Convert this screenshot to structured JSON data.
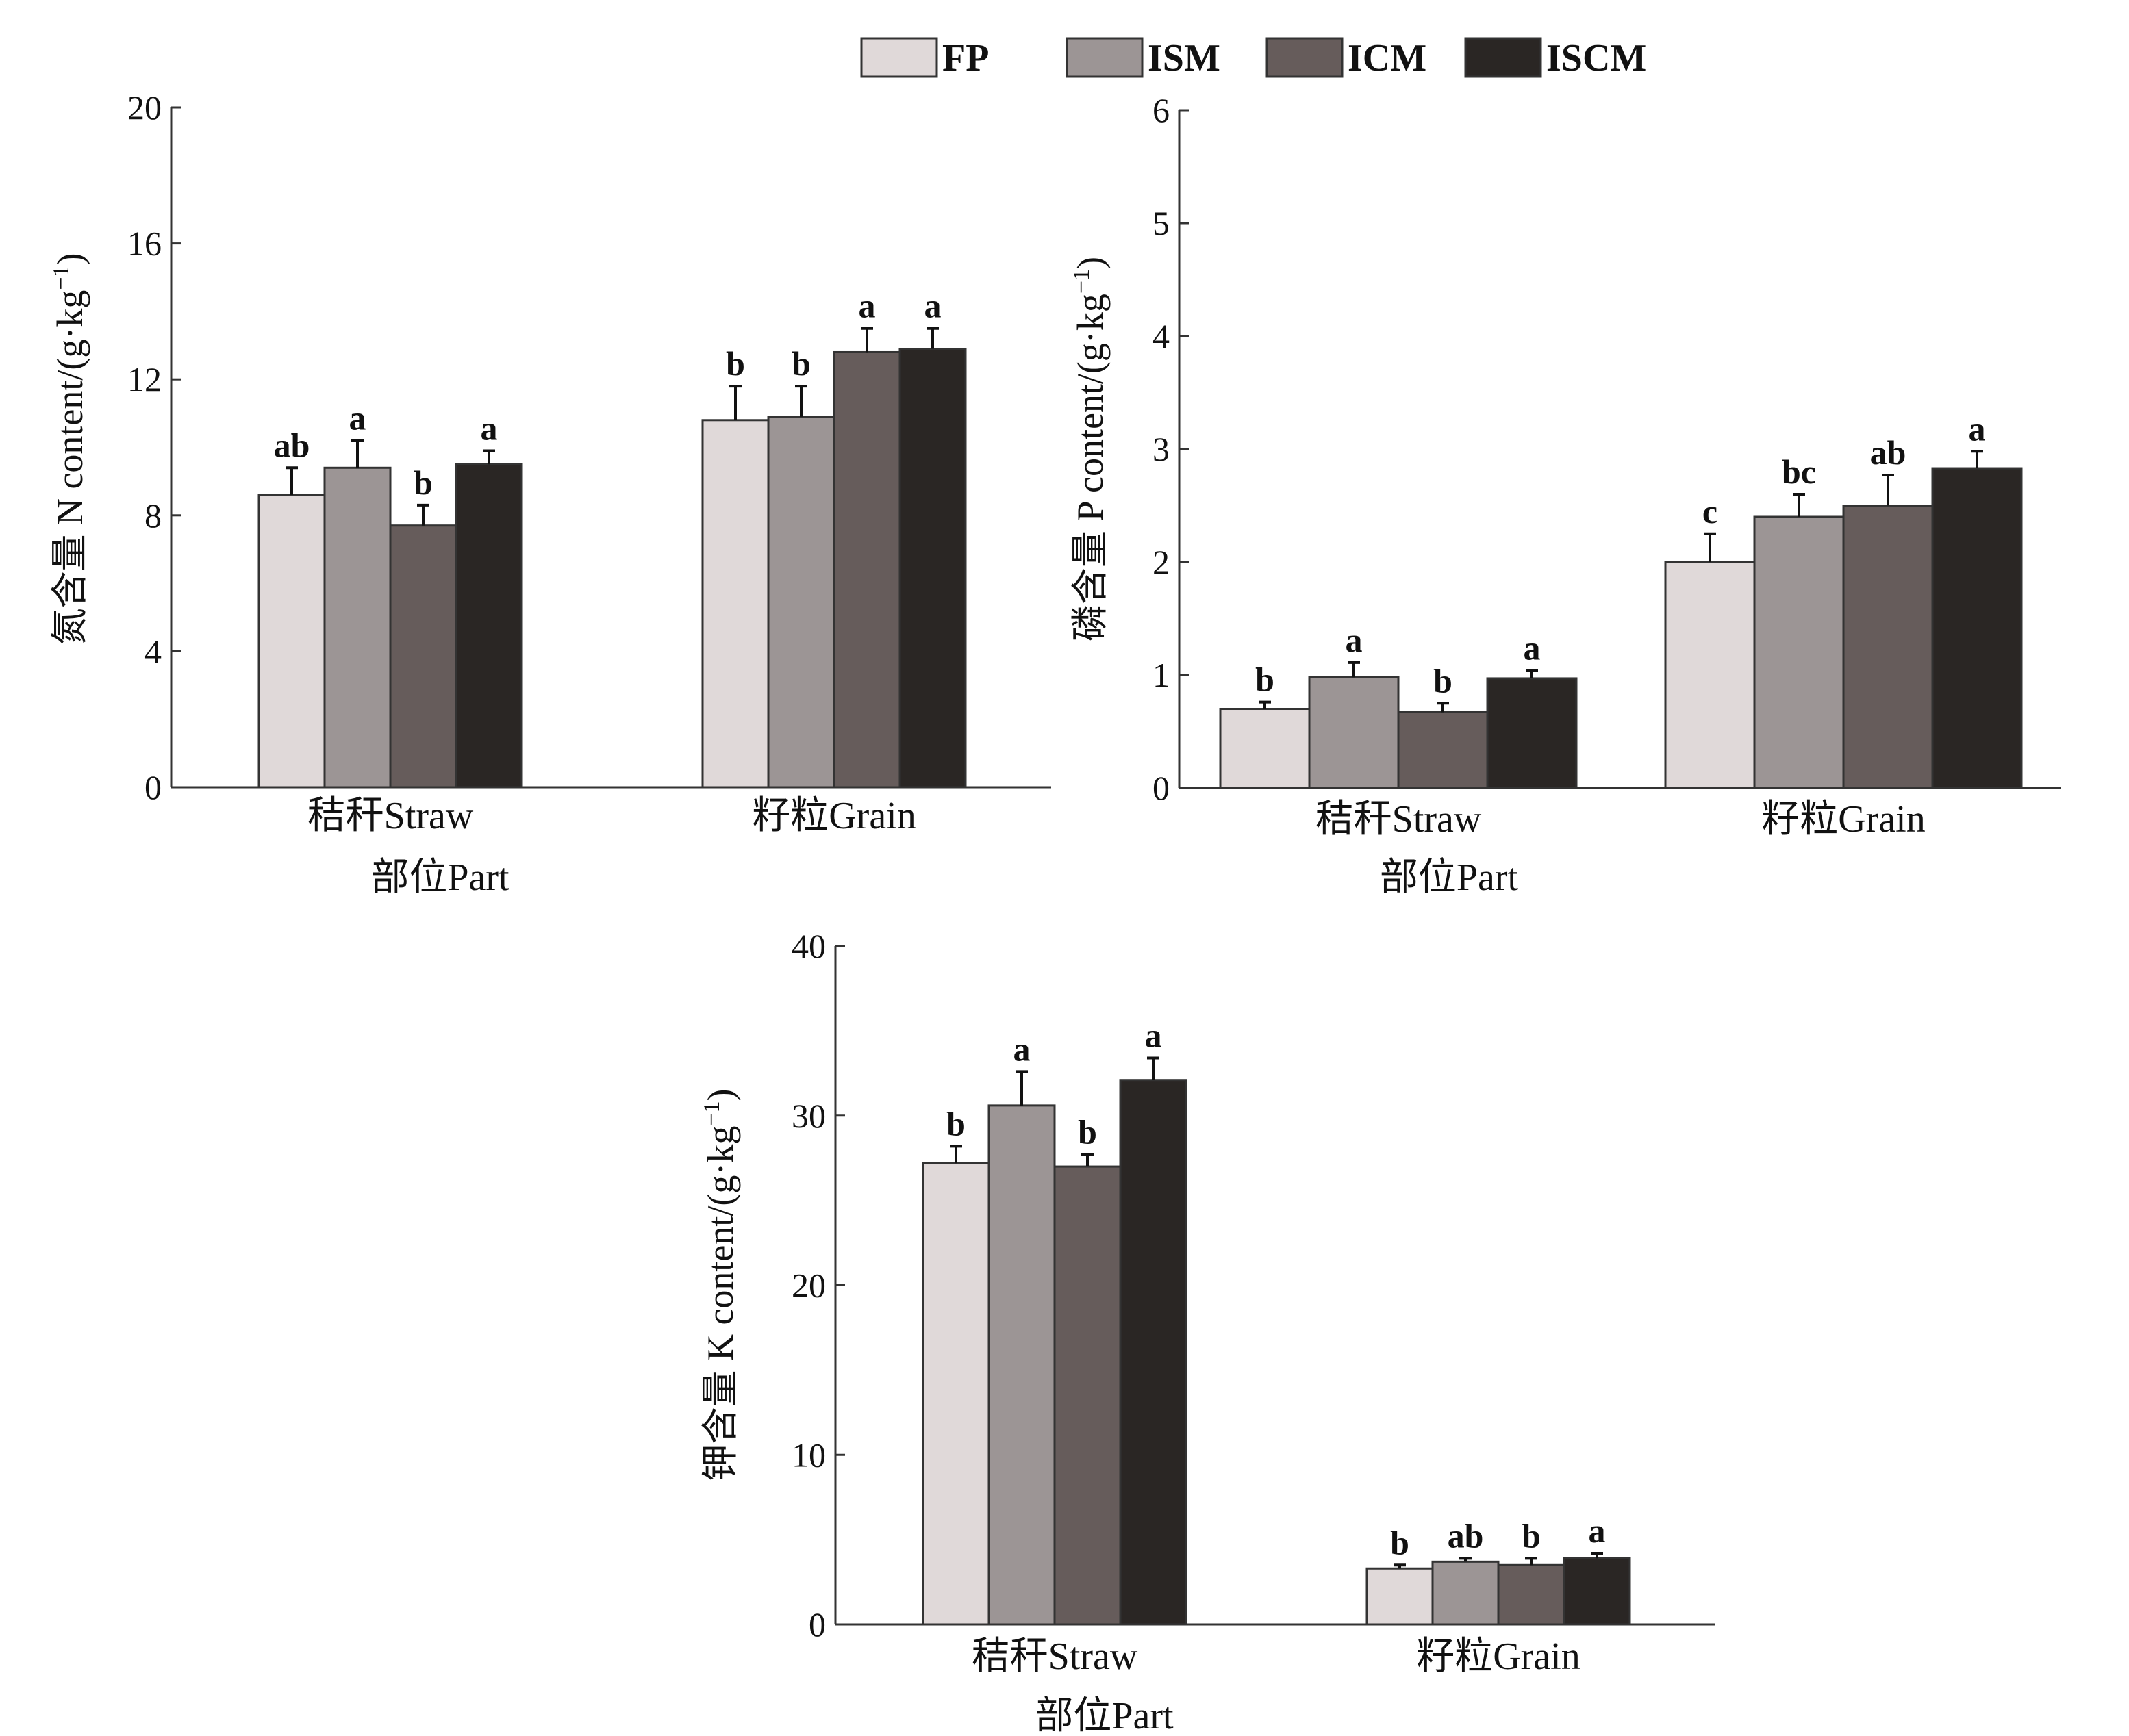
{
  "legend": {
    "items": [
      {
        "label": "FP",
        "color": "#e0d9d9"
      },
      {
        "label": "ISM",
        "color": "#9c9595"
      },
      {
        "label": "ICM",
        "color": "#665c5b"
      },
      {
        "label": "ISCM",
        "color": "#2a2624"
      }
    ]
  },
  "chart_data": [
    {
      "id": "n",
      "type": "bar",
      "title": "",
      "ylabel_cn": "氮含量",
      "ylabel_en": "N content/(g·kg",
      "ylabel_sup": "−1",
      "ylabel_close": ")",
      "xlabel": "部位Part",
      "categories": [
        "秸秆Straw",
        "籽粒Grain"
      ],
      "ylim": [
        0,
        20
      ],
      "yticks": [
        0,
        4,
        8,
        12,
        16,
        20
      ],
      "series": [
        {
          "name": "FP",
          "values": [
            8.6,
            10.8
          ],
          "errors": [
            0.8,
            1.0
          ],
          "letters": [
            "ab",
            "b"
          ]
        },
        {
          "name": "ISM",
          "values": [
            9.4,
            10.9
          ],
          "errors": [
            0.8,
            0.9
          ],
          "letters": [
            "a",
            "b"
          ]
        },
        {
          "name": "ICM",
          "values": [
            7.7,
            12.8
          ],
          "errors": [
            0.6,
            0.7
          ],
          "letters": [
            "b",
            "a"
          ]
        },
        {
          "name": "ISCM",
          "values": [
            9.5,
            12.9
          ],
          "errors": [
            0.4,
            0.6
          ],
          "letters": [
            "a",
            "a"
          ]
        }
      ]
    },
    {
      "id": "p",
      "type": "bar",
      "title": "",
      "ylabel_cn": "磷含量",
      "ylabel_en": "P content/(g·kg",
      "ylabel_sup": "−1",
      "ylabel_close": ")",
      "xlabel": "部位Part",
      "categories": [
        "秸秆Straw",
        "籽粒Grain"
      ],
      "ylim": [
        0,
        6
      ],
      "yticks": [
        0,
        1,
        2,
        3,
        4,
        5,
        6
      ],
      "series": [
        {
          "name": "FP",
          "values": [
            0.7,
            2.0
          ],
          "errors": [
            0.06,
            0.25
          ],
          "letters": [
            "b",
            "c"
          ]
        },
        {
          "name": "ISM",
          "values": [
            0.98,
            2.4
          ],
          "errors": [
            0.13,
            0.2
          ],
          "letters": [
            "a",
            "bc"
          ]
        },
        {
          "name": "ICM",
          "values": [
            0.67,
            2.5
          ],
          "errors": [
            0.08,
            0.27
          ],
          "letters": [
            "b",
            "ab"
          ]
        },
        {
          "name": "ISCM",
          "values": [
            0.97,
            2.83
          ],
          "errors": [
            0.07,
            0.15
          ],
          "letters": [
            "a",
            "a"
          ]
        }
      ]
    },
    {
      "id": "k",
      "type": "bar",
      "title": "",
      "ylabel_cn": "钾含量",
      "ylabel_en": "K content/(g·kg",
      "ylabel_sup": "−1",
      "ylabel_close": ")",
      "xlabel": "部位Part",
      "categories": [
        "秸秆Straw",
        "籽粒Grain"
      ],
      "ylim": [
        0,
        40
      ],
      "yticks": [
        0,
        10,
        20,
        30,
        40
      ],
      "series": [
        {
          "name": "FP",
          "values": [
            27.2,
            3.3
          ],
          "errors": [
            1.0,
            0.2
          ],
          "letters": [
            "b",
            "b"
          ]
        },
        {
          "name": "ISM",
          "values": [
            30.6,
            3.7
          ],
          "errors": [
            2.0,
            0.2
          ],
          "letters": [
            "a",
            "ab"
          ]
        },
        {
          "name": "ICM",
          "values": [
            27.0,
            3.5
          ],
          "errors": [
            0.7,
            0.4
          ],
          "letters": [
            "b",
            "b"
          ]
        },
        {
          "name": "ISCM",
          "values": [
            32.1,
            3.9
          ],
          "errors": [
            1.3,
            0.3
          ],
          "letters": [
            "a",
            "a"
          ]
        }
      ]
    }
  ]
}
